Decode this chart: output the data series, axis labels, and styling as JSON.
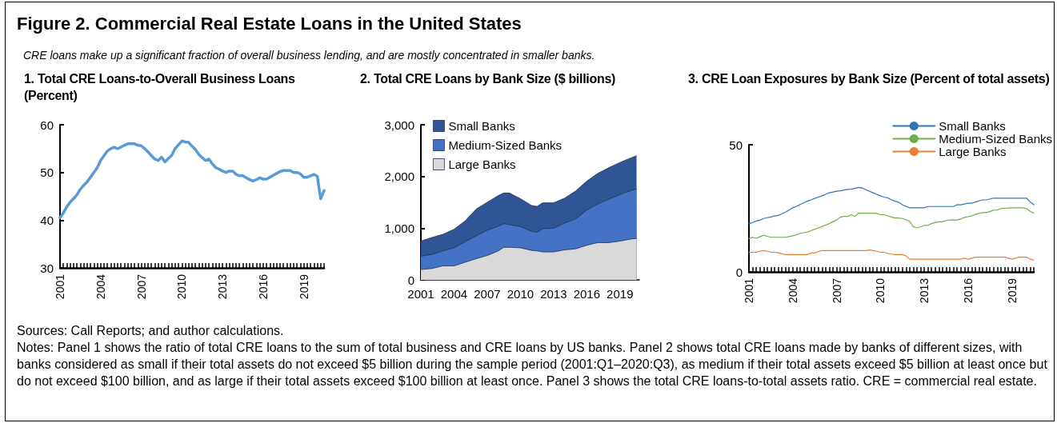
{
  "chart_data": [
    {
      "type": "other",
      "title": "Figure 2. Commercial Real Estate Loans in the United States",
      "subtitle": "CRE loans make up a significant fraction of overall business lending, and are mostly concentrated in smaller banks.",
      "annotations": [
        "Sources: Call Reports; and author calculations.",
        "Notes: Panel 1 shows the ratio of total CRE loans to the sum of total business and CRE loans by US banks. Panel 2 shows total CRE loans made by banks of different sizes, with banks considered as small if their total assets do not exceed $5 billion during the sample period (2001:Q1–2020:Q3), as medium if their total assets exceed $5 billion at least once but do not exceed $100 billion, and as large if their total assets exceed $100 billion at least once. Panel 3 shows the total CRE loans-to-total assets ratio. CRE = commercial real estate."
      ]
    },
    {
      "type": "line",
      "title": "1. Total CRE Loans-to-Overall Business Loans (Percent)",
      "categories": [
        "2001",
        null,
        null,
        null,
        null,
        null,
        null,
        null,
        null,
        null,
        null,
        null,
        "2004",
        null,
        null,
        null,
        null,
        null,
        null,
        null,
        null,
        null,
        null,
        null,
        "2007",
        null,
        null,
        null,
        null,
        null,
        null,
        null,
        null,
        null,
        null,
        null,
        "2010",
        null,
        null,
        null,
        null,
        null,
        null,
        null,
        null,
        null,
        null,
        null,
        "2013",
        null,
        null,
        null,
        null,
        null,
        null,
        null,
        null,
        null,
        null,
        null,
        "2016",
        null,
        null,
        null,
        null,
        null,
        null,
        null,
        null,
        null,
        null,
        null,
        "2019",
        null,
        null,
        null,
        null,
        null,
        null
      ],
      "values": [
        40.5,
        41.5,
        42.8,
        43.8,
        44.5,
        45.3,
        46.5,
        47.3,
        48,
        49,
        50,
        51,
        52.5,
        53.5,
        54.5,
        55,
        55.3,
        55,
        55.3,
        55.7,
        56,
        56,
        56,
        55.7,
        55.6,
        55,
        54.3,
        53.5,
        52.8,
        52.5,
        53.2,
        52.2,
        52.9,
        53.6,
        55,
        55.8,
        56.6,
        56.4,
        56.3,
        55.5,
        54.8,
        53.8,
        53.1,
        52.5,
        52.8,
        51.8,
        51,
        50.7,
        50.3,
        50,
        50.3,
        50.3,
        49.6,
        49.3,
        49.3,
        48.9,
        48.5,
        48.2,
        48.5,
        48.9,
        48.6,
        48.6,
        49,
        49.4,
        49.8,
        50.2,
        50.4,
        50.4,
        50.4,
        50,
        50,
        49.7,
        49,
        49,
        49.3,
        49.6,
        49.2,
        44.5,
        46.2
      ],
      "color": "#5b9bd5",
      "ylim": [
        30,
        60
      ],
      "yticks": [
        30,
        40,
        50,
        60
      ],
      "marker": "none"
    },
    {
      "type": "area",
      "title": "2. Total CRE Loans by Bank Size ($ billions)",
      "stacked": true,
      "x": [
        2001,
        2002,
        2003,
        2004,
        2005,
        2006,
        2007,
        2008,
        2008.5,
        2009,
        2010,
        2011,
        2011.5,
        2012,
        2013,
        2014,
        2015,
        2016,
        2017,
        2018,
        2019,
        2020,
        2020.5
      ],
      "series": [
        {
          "name": "Large Banks",
          "color": "#d9d9d9",
          "values": [
            200,
            220,
            270,
            270,
            340,
            410,
            470,
            560,
            630,
            630,
            620,
            570,
            560,
            540,
            540,
            580,
            600,
            670,
            720,
            720,
            750,
            790,
            800
          ]
        },
        {
          "name": "Medium-Sized Banks",
          "color": "#4472c4",
          "values": [
            260,
            270,
            290,
            350,
            400,
            440,
            490,
            480,
            460,
            440,
            410,
            370,
            360,
            450,
            460,
            520,
            580,
            680,
            750,
            840,
            900,
            940,
            960
          ]
        },
        {
          "name": "Small Banks",
          "color": "#2f5597",
          "values": [
            290,
            330,
            320,
            360,
            400,
            520,
            540,
            590,
            590,
            610,
            540,
            500,
            500,
            500,
            490,
            480,
            540,
            560,
            590,
            610,
            620,
            630,
            640
          ]
        }
      ],
      "xlim": [
        2001,
        2020.75
      ],
      "xticks": [
        2001,
        2004,
        2007,
        2010,
        2013,
        2016,
        2019
      ],
      "ylim": [
        0,
        3000
      ],
      "yticks": [
        0,
        {
          "value": 1000,
          "label": "1,000"
        },
        {
          "value": 2000,
          "label": "2,000"
        },
        {
          "value": 3000,
          "label": "3,000"
        }
      ],
      "legend": "top left",
      "marker": "none"
    },
    {
      "type": "line",
      "title": "3. CRE Loan Exposures by Bank Size (Percent of total assets)",
      "categories": [
        "2001",
        null,
        null,
        null,
        null,
        null,
        null,
        null,
        null,
        null,
        null,
        null,
        "2004",
        null,
        null,
        null,
        null,
        null,
        null,
        null,
        null,
        null,
        null,
        null,
        "2007",
        null,
        null,
        null,
        null,
        null,
        null,
        null,
        null,
        null,
        null,
        null,
        "2010",
        null,
        null,
        null,
        null,
        null,
        null,
        null,
        null,
        null,
        null,
        null,
        "2013",
        null,
        null,
        null,
        null,
        null,
        null,
        null,
        null,
        null,
        null,
        null,
        "2016",
        null,
        null,
        null,
        null,
        null,
        null,
        null,
        null,
        null,
        null,
        null,
        "2019",
        null,
        null,
        null,
        null,
        null,
        null
      ],
      "series": [
        {
          "name": "Small Banks",
          "color": "#2e75b6",
          "values": [
            18.9,
            19.4,
            20,
            20.3,
            21,
            21.3,
            21.6,
            22,
            22.2,
            22.8,
            23.5,
            24.3,
            25.2,
            25.8,
            26.5,
            27.2,
            27.8,
            28.3,
            28.9,
            29.4,
            29.9,
            30.5,
            31.1,
            31.4,
            31.7,
            31.9,
            32.2,
            32.4,
            32.5,
            32.8,
            33.2,
            33,
            32.3,
            31.7,
            31.1,
            30.5,
            29.9,
            29.4,
            29.1,
            28.4,
            27.8,
            27.4,
            26.4,
            25.8,
            25.2,
            25.2,
            25.2,
            25.2,
            25.2,
            25.7,
            25.7,
            25.7,
            25.7,
            25.7,
            25.7,
            25.7,
            25.7,
            26.4,
            26.4,
            26.7,
            27,
            27,
            27.5,
            27.9,
            28.3,
            28.3,
            28.7,
            29,
            29,
            29,
            29,
            29,
            29,
            29,
            29,
            29,
            29,
            27.5,
            26.4
          ]
        },
        {
          "name": "Medium-Sized Banks",
          "color": "#70ad47",
          "values": [
            13.1,
            13.6,
            13.2,
            13.8,
            14.4,
            14,
            13.6,
            13.6,
            13.6,
            13.6,
            13.6,
            13.9,
            14.2,
            14.6,
            15.1,
            15.4,
            15.7,
            16.2,
            16.8,
            17.3,
            17.8,
            18.4,
            19,
            19.7,
            20.4,
            21.5,
            21.8,
            21.8,
            22.5,
            21.8,
            23.1,
            23.1,
            23.1,
            23.1,
            23.1,
            23,
            22.5,
            22.5,
            22,
            21.6,
            21.2,
            21.2,
            21,
            20.5,
            19.9,
            17.8,
            17.3,
            17.7,
            18.3,
            18.3,
            19,
            19.4,
            19.7,
            19.7,
            20.2,
            20.4,
            20.4,
            20.4,
            20.8,
            21.4,
            21.7,
            22,
            22.6,
            23,
            23.3,
            23.3,
            23.7,
            24.3,
            24.3,
            24.9,
            25,
            25.1,
            25.2,
            25.2,
            25.2,
            25.2,
            24.9,
            23.8,
            23.1
          ]
        },
        {
          "name": "Large Banks",
          "color": "#ed7d31",
          "values": [
            7.7,
            7.7,
            7.7,
            8.1,
            8.4,
            8.1,
            7.7,
            7.7,
            7.5,
            7.1,
            6.8,
            6.8,
            6.8,
            6.8,
            6.8,
            6.8,
            6.8,
            7.4,
            7.4,
            8,
            8.4,
            8.4,
            8.4,
            8.4,
            8.4,
            8.4,
            8.4,
            8.4,
            8.4,
            8.4,
            8.4,
            8.4,
            8.4,
            8.6,
            8.4,
            8.1,
            7.7,
            7.7,
            7.3,
            7,
            6.8,
            6.8,
            6.8,
            6.3,
            5,
            5,
            5,
            5,
            5,
            5,
            5,
            5,
            5,
            5,
            5,
            5,
            5,
            5,
            5,
            5.4,
            5,
            5.4,
            5.8,
            5.8,
            5.8,
            5.8,
            5.8,
            5.8,
            5.8,
            5.8,
            5.8,
            5.4,
            5,
            5.4,
            5.8,
            5.8,
            5.8,
            5,
            4.7
          ]
        }
      ],
      "ylim": [
        0,
        50
      ],
      "yticks": [
        0,
        50
      ],
      "marker": "none",
      "legend": "top right"
    }
  ]
}
